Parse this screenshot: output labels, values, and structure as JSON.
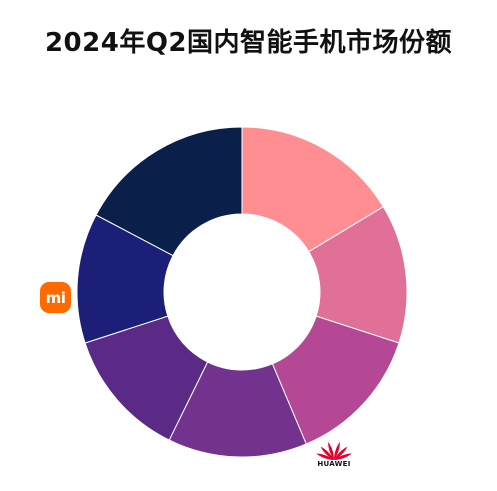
{
  "chart_data": {
    "type": "pie",
    "title": "2024年Q2国内智能手机市场份额",
    "donut": true,
    "categories": [
      "",
      "",
      "",
      "",
      "",
      "",
      ""
    ],
    "values": [
      18,
      15,
      15,
      15,
      14,
      14,
      19
    ],
    "colors": [
      "#ff8e93",
      "#e07097",
      "#b54894",
      "#73328e",
      "#5a2a86",
      "#1c1f78",
      "#0a1f4a"
    ],
    "brand_marks": [
      "Xiaomi",
      "Huawei"
    ]
  },
  "logos": {
    "xiaomi": {
      "text": "mi",
      "color": "#ff6a00"
    },
    "huawei": {
      "wordmark": "HUAWEI",
      "color": "#e4002b"
    }
  }
}
